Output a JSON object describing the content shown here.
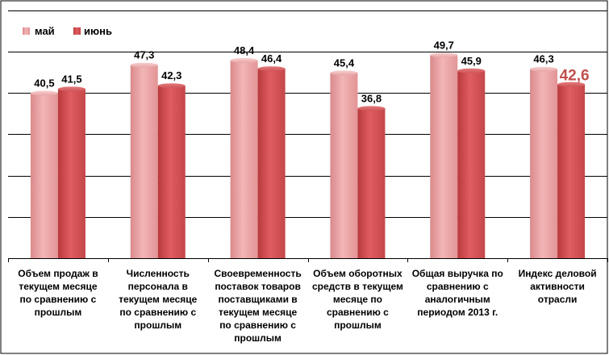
{
  "chart_data": {
    "type": "bar",
    "categories": [
      [
        "Объем продаж в",
        "текущем месяце",
        "по сравнению с",
        "прошлым"
      ],
      [
        "Численность",
        "персонала в",
        "текущем месяце",
        "по сравнению с",
        "прошлым"
      ],
      [
        "Своевременность",
        "поставок товаров",
        "поставщиками в",
        "текущем месяце",
        "по сравнению с",
        "прошлым"
      ],
      [
        "Объем оборотных",
        "средств в текущем",
        "месяце по",
        "сравнению с",
        "прошлым"
      ],
      [
        "Общая выручка по",
        "сравнению с",
        "аналогичным",
        "периодом 2013 г."
      ],
      [
        "Индекс деловой",
        "активности",
        "отрасли"
      ]
    ],
    "series": [
      {
        "name": "май",
        "values": [
          40.5,
          47.3,
          48.4,
          45.4,
          49.7,
          46.3
        ],
        "labels": [
          "40,5",
          "47,3",
          "48,4",
          "45,4",
          "49,7",
          "46,3"
        ]
      },
      {
        "name": "июнь",
        "values": [
          41.5,
          42.3,
          46.4,
          36.8,
          45.9,
          42.6
        ],
        "labels": [
          "41,5",
          "42,3",
          "46,4",
          "36,8",
          "45,9",
          "42,6"
        ]
      }
    ],
    "highlight": {
      "series": 1,
      "index": 5
    },
    "ylim": [
      0,
      60
    ],
    "grid": true,
    "legend": "top-left",
    "colors": {
      "series0": "#e6999a",
      "series1": "#cc4a4d",
      "grid": "#000000",
      "highlight_text": "#c0504d"
    }
  }
}
